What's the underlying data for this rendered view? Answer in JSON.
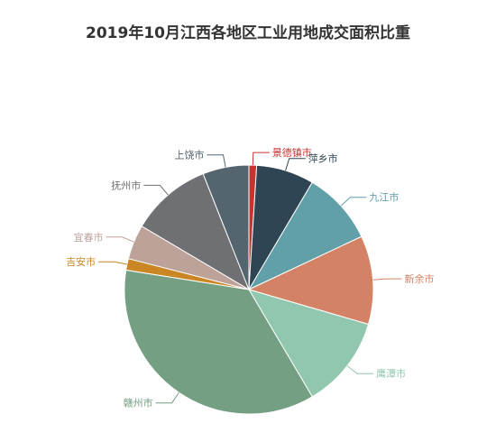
{
  "chart_data": {
    "type": "pie",
    "title": "2019年10月江西各地区工业用地成交面积比重",
    "slices": [
      {
        "label": "景德镇市",
        "value": 1.0,
        "color": "#c23531"
      },
      {
        "label": "萍乡市",
        "value": 7.5,
        "color": "#2f4554"
      },
      {
        "label": "九江市",
        "value": 9.5,
        "color": "#61a0a8"
      },
      {
        "label": "新余市",
        "value": 11.5,
        "color": "#d48265"
      },
      {
        "label": "鹰潭市",
        "value": 12.0,
        "color": "#91c7ae"
      },
      {
        "label": "赣州市",
        "value": 36.0,
        "color": "#749f83"
      },
      {
        "label": "吉安市",
        "value": 1.5,
        "color": "#ca8622"
      },
      {
        "label": "宜春市",
        "value": 4.5,
        "color": "#bda29a"
      },
      {
        "label": "抚州市",
        "value": 10.5,
        "color": "#6e7074"
      },
      {
        "label": "上饶市",
        "value": 6.0,
        "color": "#546570"
      }
    ],
    "legend": "none"
  }
}
